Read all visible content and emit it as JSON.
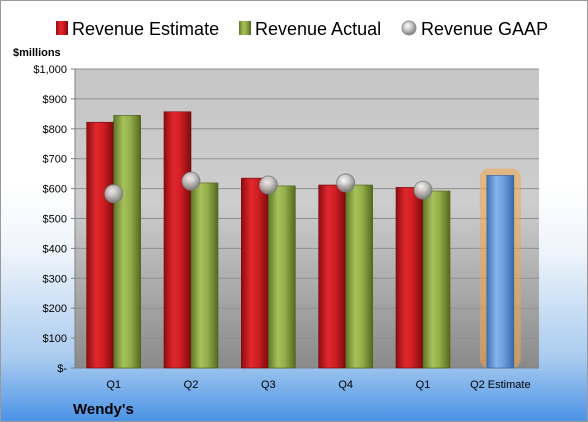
{
  "chart_data": {
    "type": "bar",
    "unit_label": "$millions",
    "company": "Wendy's",
    "categories": [
      "Q1",
      "Q2",
      "Q3",
      "Q4",
      "Q1",
      "Q2 Estimate"
    ],
    "series": [
      {
        "name": "Revenue Estimate",
        "kind": "bar",
        "color": "#c0161b",
        "values": [
          822,
          857,
          635,
          612,
          604,
          null
        ]
      },
      {
        "name": "Revenue Actual",
        "kind": "bar",
        "color": "#86a03a",
        "values": [
          845,
          619,
          609,
          612,
          592,
          null
        ]
      },
      {
        "name": "Revenue GAAP",
        "kind": "marker",
        "color": "#a9a9a9",
        "values": [
          583,
          625,
          612,
          619,
          595,
          null
        ]
      }
    ],
    "highlight": {
      "category": "Q2 Estimate",
      "value": 644,
      "color": "#5b93d8",
      "glow": "#f0a64a"
    },
    "yticks": [
      "$-",
      "$100",
      "$200",
      "$300",
      "$400",
      "$500",
      "$600",
      "$700",
      "$800",
      "$900",
      "$1,000"
    ],
    "ylim": [
      0,
      1000
    ],
    "grid": true,
    "legend_position": "top"
  }
}
